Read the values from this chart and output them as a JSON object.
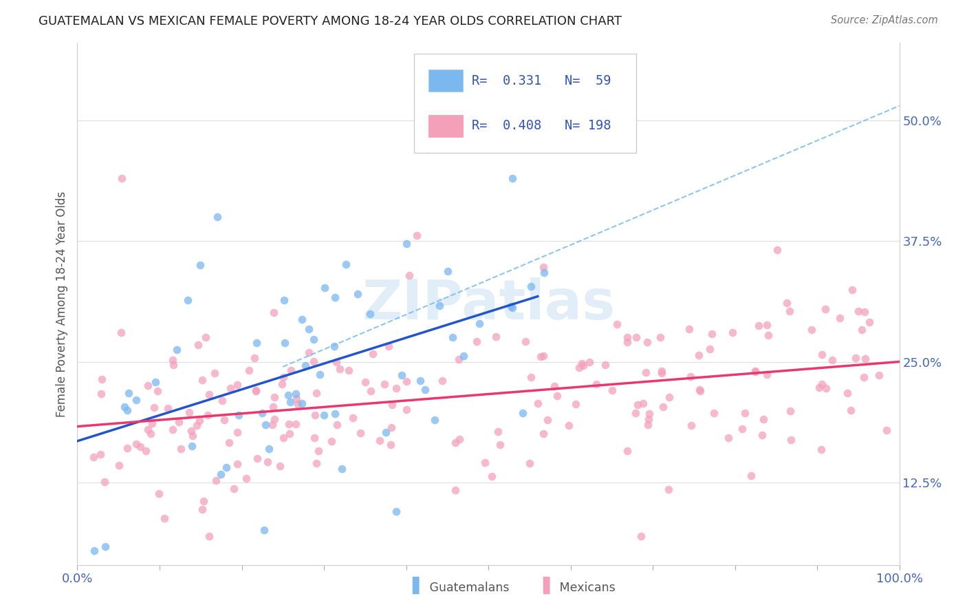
{
  "title": "GUATEMALAN VS MEXICAN FEMALE POVERTY AMONG 18-24 YEAR OLDS CORRELATION CHART",
  "source": "Source: ZipAtlas.com",
  "ylabel": "Female Poverty Among 18-24 Year Olds",
  "yticks": [
    0.125,
    0.25,
    0.375,
    0.5
  ],
  "ytick_labels": [
    "12.5%",
    "25.0%",
    "37.5%",
    "50.0%"
  ],
  "xlim": [
    0.0,
    1.0
  ],
  "ylim": [
    0.04,
    0.58
  ],
  "guatemalan_R": 0.331,
  "guatemalan_N": 59,
  "mexican_R": 0.408,
  "mexican_N": 198,
  "guatemalan_color": "#7bb8f0",
  "mexican_color": "#f4a0bb",
  "trend_guatemalan_color": "#2255cc",
  "trend_mexican_color": "#e8386e",
  "dash_color": "#7abaf0",
  "watermark_color": "#c8dff5",
  "background_color": "#ffffff",
  "grid_color": "#e0e0e0",
  "title_color": "#222222",
  "source_color": "#777777",
  "axis_label_color": "#4466bb",
  "ylabel_color": "#555555",
  "legend_text_color": "#3355bb"
}
